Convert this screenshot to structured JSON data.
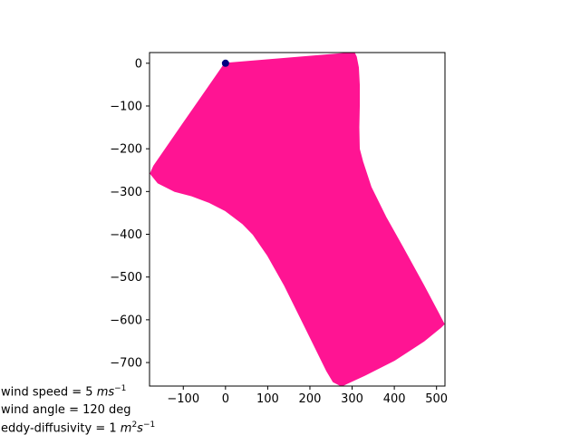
{
  "chart_data": {
    "type": "area",
    "title": "",
    "xlabel": "",
    "ylabel": "",
    "xlim": [
      -180,
      520
    ],
    "ylim": [
      -755,
      25
    ],
    "xticks": [
      -100,
      0,
      100,
      200,
      300,
      400,
      500
    ],
    "yticks": [
      0,
      -100,
      -200,
      -300,
      -400,
      -500,
      -600,
      -700
    ],
    "xtick_labels": [
      "−100",
      "0",
      "100",
      "200",
      "300",
      "400",
      "500"
    ],
    "ytick_labels": [
      "0",
      "−100",
      "−200",
      "−300",
      "−400",
      "−500",
      "−600",
      "−700"
    ],
    "grid": false,
    "series": [
      {
        "kind": "region",
        "color": "#ff1493",
        "points": [
          [
            0,
            0
          ],
          [
            305,
            25
          ],
          [
            310,
            15
          ],
          [
            315,
            -10
          ],
          [
            317,
            -50
          ],
          [
            317,
            -100
          ],
          [
            316,
            -150
          ],
          [
            317,
            -200
          ],
          [
            325,
            -230
          ],
          [
            345,
            -290
          ],
          [
            380,
            -360
          ],
          [
            420,
            -430
          ],
          [
            470,
            -520
          ],
          [
            505,
            -585
          ],
          [
            518,
            -610
          ],
          [
            510,
            -618
          ],
          [
            470,
            -650
          ],
          [
            400,
            -695
          ],
          [
            330,
            -730
          ],
          [
            275,
            -755
          ],
          [
            255,
            -745
          ],
          [
            240,
            -720
          ],
          [
            220,
            -680
          ],
          [
            180,
            -600
          ],
          [
            140,
            -520
          ],
          [
            100,
            -450
          ],
          [
            65,
            -400
          ],
          [
            40,
            -375
          ],
          [
            0,
            -345
          ],
          [
            -40,
            -325
          ],
          [
            -80,
            -310
          ],
          [
            -120,
            -300
          ],
          [
            -160,
            -280
          ],
          [
            -178,
            -258
          ],
          [
            -170,
            -240
          ],
          [
            -100,
            -140
          ],
          [
            -40,
            -55
          ],
          [
            -5,
            -5
          ]
        ]
      },
      {
        "kind": "point",
        "color": "#000080",
        "x": 0,
        "y": 0
      }
    ]
  },
  "annotations": {
    "wind_speed_prefix": "wind speed = 5 ",
    "wind_speed_unit_a": "ms",
    "wind_speed_exp": "−1",
    "wind_angle": "wind angle = 120 deg",
    "eddy_prefix": "eddy-diffusivity = 1 ",
    "eddy_unit_a": "m",
    "eddy_exp_a": "2",
    "eddy_unit_b": "s",
    "eddy_exp_b": "−1"
  }
}
